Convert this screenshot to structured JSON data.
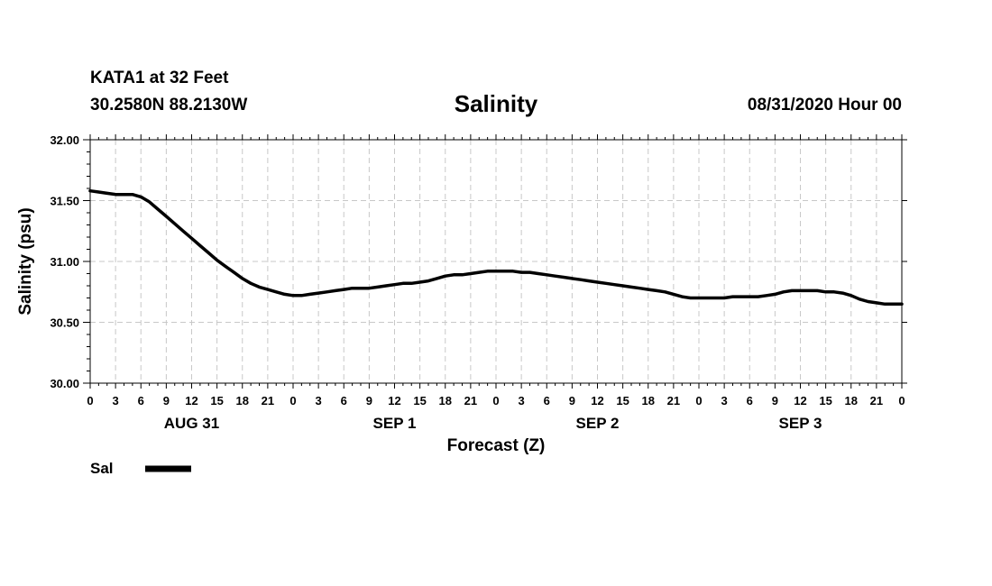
{
  "header": {
    "station": "KATA1 at 32 Feet",
    "coords": "30.2580N 88.2130W",
    "title": "Salinity",
    "forecast_time": "08/31/2020 Hour 00"
  },
  "chart_data": {
    "type": "line",
    "title": "Salinity",
    "xlabel": "Forecast (Z)",
    "ylabel": "Salinity (psu)",
    "ylim": [
      30.0,
      32.0
    ],
    "xlim": [
      0,
      96
    ],
    "y_ticks": [
      "30.00",
      "30.50",
      "31.00",
      "31.50",
      "32.00"
    ],
    "x_tick_labels": [
      "0",
      "3",
      "6",
      "9",
      "12",
      "15",
      "18",
      "21",
      "0",
      "3",
      "6",
      "9",
      "12",
      "15",
      "18",
      "21",
      "0",
      "3",
      "6",
      "9",
      "12",
      "15",
      "18",
      "21",
      "0",
      "3",
      "6",
      "9",
      "12",
      "15",
      "18",
      "21",
      "0"
    ],
    "day_labels": [
      {
        "label": "AUG 31",
        "hour": 12
      },
      {
        "label": "SEP 1",
        "hour": 36
      },
      {
        "label": "SEP 2",
        "hour": 60
      },
      {
        "label": "SEP 3",
        "hour": 84
      }
    ],
    "grid": true,
    "legend": [
      {
        "name": "Sal",
        "color": "#000000"
      }
    ],
    "series": [
      {
        "name": "Sal",
        "color": "#000000",
        "x": [
          0,
          1,
          2,
          3,
          4,
          5,
          6,
          7,
          8,
          9,
          10,
          11,
          12,
          13,
          14,
          15,
          16,
          17,
          18,
          19,
          20,
          21,
          22,
          23,
          24,
          25,
          26,
          27,
          28,
          29,
          30,
          31,
          32,
          33,
          34,
          35,
          36,
          37,
          38,
          39,
          40,
          41,
          42,
          43,
          44,
          45,
          46,
          47,
          48,
          49,
          50,
          51,
          52,
          53,
          54,
          55,
          56,
          57,
          58,
          59,
          60,
          61,
          62,
          63,
          64,
          65,
          66,
          67,
          68,
          69,
          70,
          71,
          72,
          73,
          74,
          75,
          76,
          77,
          78,
          79,
          80,
          81,
          82,
          83,
          84,
          85,
          86,
          87,
          88,
          89,
          90,
          91,
          92,
          93,
          94,
          95,
          96
        ],
        "values": [
          31.58,
          31.57,
          31.56,
          31.55,
          31.55,
          31.55,
          31.53,
          31.49,
          31.43,
          31.37,
          31.31,
          31.25,
          31.19,
          31.13,
          31.07,
          31.01,
          30.96,
          30.91,
          30.86,
          30.82,
          30.79,
          30.77,
          30.75,
          30.73,
          30.72,
          30.72,
          30.73,
          30.74,
          30.75,
          30.76,
          30.77,
          30.78,
          30.78,
          30.78,
          30.79,
          30.8,
          30.81,
          30.82,
          30.82,
          30.83,
          30.84,
          30.86,
          30.88,
          30.89,
          30.89,
          30.9,
          30.91,
          30.92,
          30.92,
          30.92,
          30.92,
          30.91,
          30.91,
          30.9,
          30.89,
          30.88,
          30.87,
          30.86,
          30.85,
          30.84,
          30.83,
          30.82,
          30.81,
          30.8,
          30.79,
          30.78,
          30.77,
          30.76,
          30.75,
          30.73,
          30.71,
          30.7,
          30.7,
          30.7,
          30.7,
          30.7,
          30.71,
          30.71,
          30.71,
          30.71,
          30.72,
          30.73,
          30.75,
          30.76,
          30.76,
          30.76,
          30.76,
          30.75,
          30.75,
          30.74,
          30.72,
          30.69,
          30.67,
          30.66,
          30.65,
          30.65,
          30.65
        ]
      }
    ]
  }
}
